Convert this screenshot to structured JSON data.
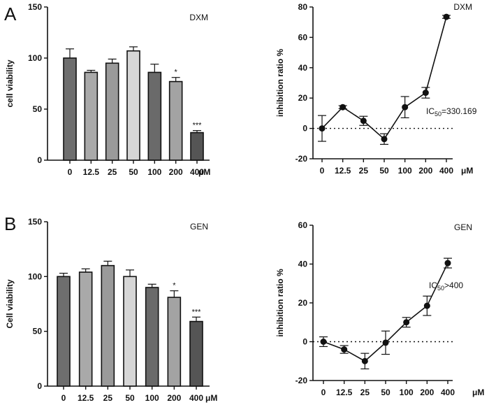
{
  "panels": [
    {
      "letter": "A"
    },
    {
      "letter": "B"
    }
  ],
  "chart_data": [
    {
      "type": "bar",
      "title": "DXM",
      "xlabel": "",
      "ylabel": "cell viability",
      "unit_label": "μM",
      "categories": [
        "0",
        "12.5",
        "25",
        "50",
        "100",
        "200",
        "400"
      ],
      "values": [
        100,
        86,
        95,
        107,
        86,
        77,
        27
      ],
      "errors": [
        9,
        2,
        4,
        4,
        8,
        4,
        2
      ],
      "significance": [
        "",
        "",
        "",
        "",
        "",
        "*",
        "***"
      ],
      "bar_colors": [
        "#6e6e6e",
        "#a9a9a9",
        "#9a9a9a",
        "#d6d6d6",
        "#6a6a6a",
        "#a3a3a3",
        "#555555"
      ],
      "ylim": [
        0,
        150
      ],
      "yticks": [
        "0",
        "50",
        "100",
        "150"
      ]
    },
    {
      "type": "line",
      "title": "DXM",
      "xlabel": "",
      "ylabel": "inhibition ratio %",
      "unit_label": "μM",
      "categories": [
        "0",
        "12.5",
        "25",
        "50",
        "100",
        "200",
        "400"
      ],
      "values": [
        0,
        14,
        5,
        -7,
        14,
        23.5,
        73.5
      ],
      "errors": [
        8.5,
        1,
        3,
        3.5,
        7,
        3.5,
        1
      ],
      "ylim": [
        -20,
        80
      ],
      "yticks": [
        "-20",
        "0",
        "20",
        "40",
        "60",
        "80"
      ],
      "annotation": {
        "main": "IC",
        "sub": "50",
        "rest": "=330.169"
      }
    },
    {
      "type": "bar",
      "title": "GEN",
      "xlabel": "",
      "ylabel": "Cell viability",
      "unit_label": "μM",
      "categories": [
        "0",
        "12.5",
        "25",
        "50",
        "100",
        "200",
        "400"
      ],
      "values": [
        100,
        104,
        110,
        100,
        90,
        81,
        59
      ],
      "errors": [
        3,
        3,
        4,
        6,
        3,
        6,
        4
      ],
      "significance": [
        "",
        "",
        "",
        "",
        "",
        "*",
        "***"
      ],
      "bar_colors": [
        "#6e6e6e",
        "#a9a9a9",
        "#9a9a9a",
        "#d6d6d6",
        "#6a6a6a",
        "#a3a3a3",
        "#555555"
      ],
      "ylim": [
        0,
        150
      ],
      "yticks": [
        "0",
        "50",
        "100",
        "150"
      ]
    },
    {
      "type": "line",
      "title": "GEN",
      "xlabel": "",
      "ylabel": "inhibition ratio %",
      "unit_label": "μM",
      "categories": [
        "0",
        "12.5",
        "25",
        "50",
        "100",
        "200",
        "400"
      ],
      "values": [
        0,
        -4,
        -10,
        -0.5,
        10,
        18.5,
        40.5
      ],
      "errors": [
        2.5,
        2,
        4,
        6,
        2.5,
        5,
        2.5
      ],
      "ylim": [
        -20,
        60
      ],
      "yticks": [
        "-20",
        "0",
        "20",
        "40",
        "60"
      ],
      "annotation": {
        "main": "IC",
        "sub": "50",
        "rest": ">400"
      }
    }
  ]
}
